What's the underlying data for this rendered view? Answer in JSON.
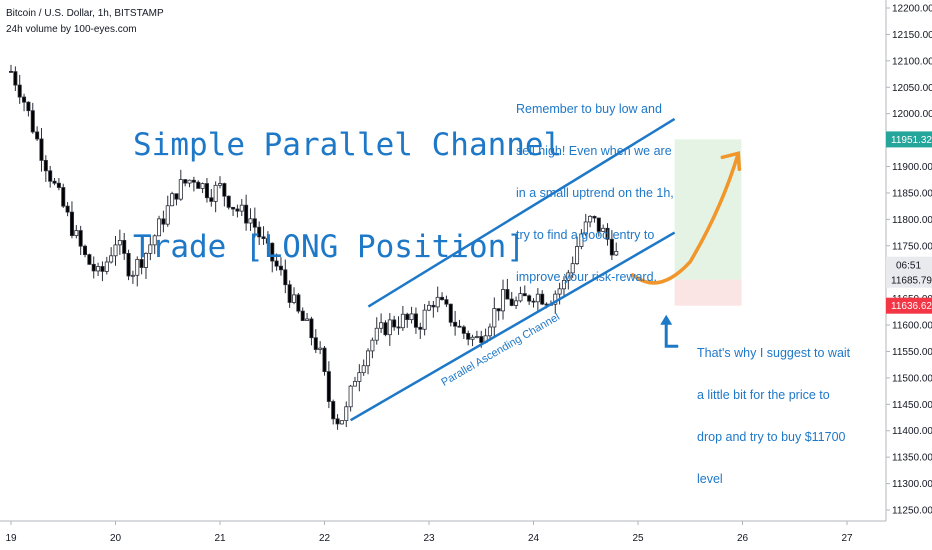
{
  "header": {
    "line1": "Bitcoin / U.S. Dollar, 1h, BITSTAMP",
    "line2": "24h volume by 100-eyes.com"
  },
  "title": {
    "line1": "Simple Parallel Channel",
    "line2": "Trade [LONG Position]"
  },
  "annotations": {
    "top_note": [
      "Remember to buy low and",
      "sell high! Even when we are",
      "in a small uptrend on the 1h,",
      "try to find a good entry to",
      "improve your risk-reward."
    ],
    "bottom_note": [
      "That's why I suggest to wait",
      "a little bit for the price to",
      "drop and try to buy $11700",
      "level"
    ],
    "channel_label": "Parallel Ascending Channel"
  },
  "colors": {
    "bull": "#26a69a",
    "bear": "#000000",
    "channel": "#1e78c8",
    "projection": "#f0962a",
    "arrow": "#1e78c8",
    "target_zone": "#e4f3e4",
    "stop_zone": "#fbe4e4",
    "target_badge": "#26a69a",
    "stop_badge": "#f23645"
  },
  "price_badges": {
    "target": "11951.32",
    "current_price": "11685.79",
    "current_time": "06:51",
    "stop": "11636.62"
  },
  "chart_data": {
    "type": "candlestick",
    "x_axis": {
      "ticks": [
        "19",
        "20",
        "21",
        "22",
        "23",
        "24",
        "25",
        "26",
        "27"
      ]
    },
    "y_axis": {
      "range": [
        11210,
        12220
      ],
      "ticks": [
        "12200.00",
        "12150.00",
        "12100.00",
        "12050.00",
        "12000.00",
        "11950.00",
        "11900.00",
        "11850.00",
        "11800.00",
        "11750.00",
        "11700.00",
        "11650.00",
        "11600.00",
        "11550.00",
        "11500.00",
        "11450.00",
        "11400.00",
        "11350.00",
        "11300.00",
        "11250.00"
      ],
      "tick_values": [
        12200,
        12150,
        12100,
        12050,
        12000,
        11950,
        11900,
        11850,
        11800,
        11750,
        11700,
        11650,
        11600,
        11550,
        11500,
        11450,
        11400,
        11350,
        11300,
        11250
      ]
    },
    "close_path_days": [
      19.0,
      19.1,
      19.25,
      19.4,
      19.55,
      19.7,
      19.85,
      20.0,
      20.15,
      20.3,
      20.45,
      20.6,
      20.75,
      20.9,
      21.0,
      21.15,
      21.3,
      21.45,
      21.6,
      21.75,
      21.85,
      21.95,
      22.05,
      22.13,
      22.2,
      22.3,
      22.45,
      22.6,
      22.75,
      22.9,
      23.05,
      23.15,
      23.3,
      23.45,
      23.55,
      23.7,
      23.85,
      24.0,
      24.15,
      24.3,
      24.45,
      24.55,
      24.65,
      24.75,
      24.82
    ],
    "close_path_prices": [
      12080,
      12040,
      11950,
      11870,
      11800,
      11730,
      11690,
      11760,
      11700,
      11740,
      11800,
      11860,
      11880,
      11850,
      11860,
      11820,
      11800,
      11740,
      11690,
      11620,
      11590,
      11550,
      11450,
      11420,
      11430,
      11510,
      11570,
      11600,
      11610,
      11600,
      11650,
      11630,
      11590,
      11570,
      11600,
      11650,
      11640,
      11660,
      11650,
      11680,
      11770,
      11800,
      11780,
      11750,
      11720
    ],
    "channel_upper": {
      "x": [
        22.42,
        25.35
      ],
      "y": [
        11635,
        11990
      ]
    },
    "channel_lower": {
      "x": [
        22.25,
        25.35
      ],
      "y": [
        11420,
        11775
      ]
    },
    "projection_path": {
      "x": [
        24.95,
        25.2,
        25.5,
        25.8,
        25.96
      ],
      "y": [
        11695,
        11685,
        11720,
        11860,
        11925
      ]
    },
    "position": {
      "entry_days": [
        25.35,
        25.99
      ],
      "target": 11951.32,
      "entry": 11685.79,
      "stop": 11636.62
    }
  }
}
